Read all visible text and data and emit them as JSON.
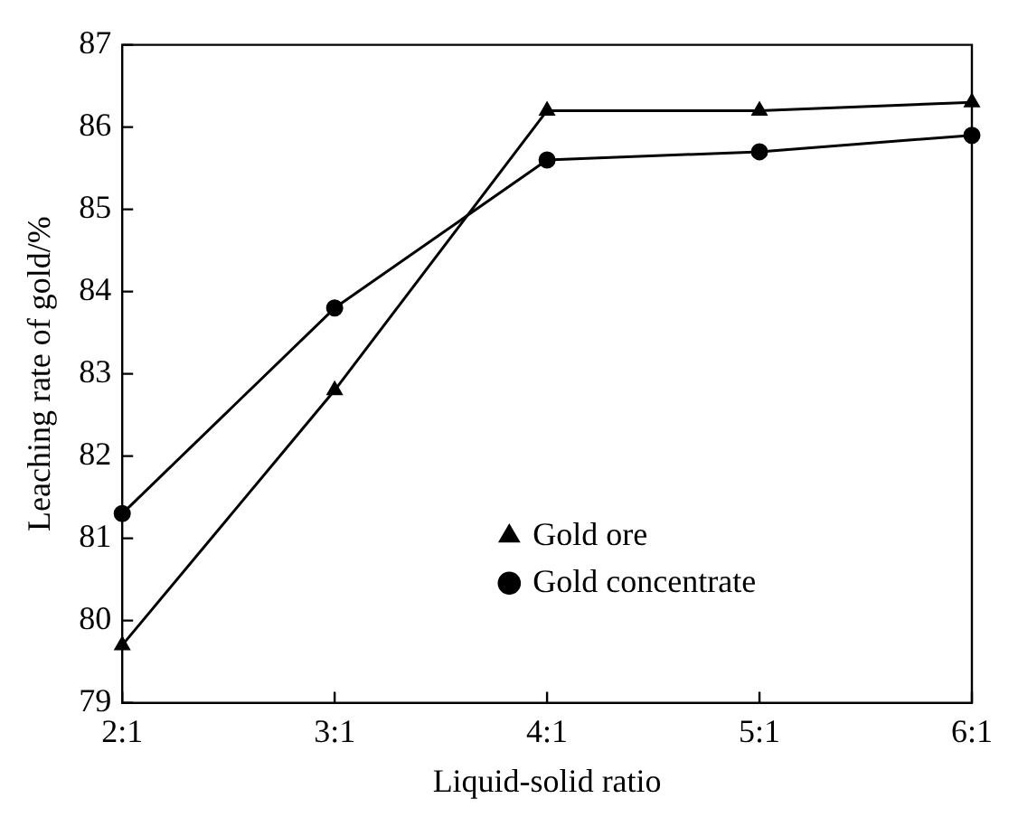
{
  "chart_data": {
    "type": "line",
    "xlabel": "Liquid-solid ratio",
    "ylabel": "Leaching rate of gold/%",
    "categories": [
      "2:1",
      "3:1",
      "4:1",
      "5:1",
      "6:1"
    ],
    "series": [
      {
        "name": "Gold ore",
        "color": "#000000",
        "marker": "triangle",
        "values": [
          79.7,
          82.8,
          86.2,
          86.2,
          86.3
        ]
      },
      {
        "name": "Gold concentrate",
        "color": "#000000",
        "marker": "circle",
        "values": [
          81.3,
          83.8,
          85.6,
          85.7,
          85.9
        ]
      }
    ],
    "ylim": [
      79,
      87
    ],
    "yticks": [
      79,
      80,
      81,
      82,
      83,
      84,
      85,
      86,
      87
    ],
    "grid": false,
    "legend": "bottom right",
    "line_style": "solid"
  }
}
